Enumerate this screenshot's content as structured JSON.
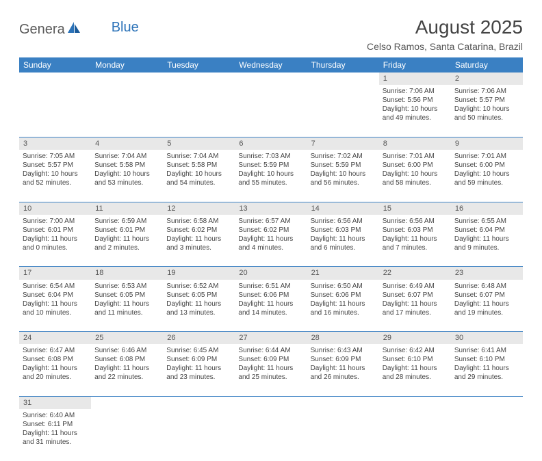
{
  "logo": {
    "text_general": "Genera",
    "text_blue": "Blue"
  },
  "title": "August 2025",
  "location": "Celso Ramos, Santa Catarina, Brazil",
  "colors": {
    "header_bg": "#3a80c3",
    "header_text": "#ffffff",
    "daynum_bg": "#e8e8e8",
    "row_divider": "#3a80c3",
    "logo_blue": "#2b72b8",
    "body_text": "#444444",
    "page_bg": "#ffffff"
  },
  "weekdays": [
    "Sunday",
    "Monday",
    "Tuesday",
    "Wednesday",
    "Thursday",
    "Friday",
    "Saturday"
  ],
  "weeks": [
    [
      null,
      null,
      null,
      null,
      null,
      {
        "n": "1",
        "sunrise": "Sunrise: 7:06 AM",
        "sunset": "Sunset: 5:56 PM",
        "day1": "Daylight: 10 hours",
        "day2": "and 49 minutes."
      },
      {
        "n": "2",
        "sunrise": "Sunrise: 7:06 AM",
        "sunset": "Sunset: 5:57 PM",
        "day1": "Daylight: 10 hours",
        "day2": "and 50 minutes."
      }
    ],
    [
      {
        "n": "3",
        "sunrise": "Sunrise: 7:05 AM",
        "sunset": "Sunset: 5:57 PM",
        "day1": "Daylight: 10 hours",
        "day2": "and 52 minutes."
      },
      {
        "n": "4",
        "sunrise": "Sunrise: 7:04 AM",
        "sunset": "Sunset: 5:58 PM",
        "day1": "Daylight: 10 hours",
        "day2": "and 53 minutes."
      },
      {
        "n": "5",
        "sunrise": "Sunrise: 7:04 AM",
        "sunset": "Sunset: 5:58 PM",
        "day1": "Daylight: 10 hours",
        "day2": "and 54 minutes."
      },
      {
        "n": "6",
        "sunrise": "Sunrise: 7:03 AM",
        "sunset": "Sunset: 5:59 PM",
        "day1": "Daylight: 10 hours",
        "day2": "and 55 minutes."
      },
      {
        "n": "7",
        "sunrise": "Sunrise: 7:02 AM",
        "sunset": "Sunset: 5:59 PM",
        "day1": "Daylight: 10 hours",
        "day2": "and 56 minutes."
      },
      {
        "n": "8",
        "sunrise": "Sunrise: 7:01 AM",
        "sunset": "Sunset: 6:00 PM",
        "day1": "Daylight: 10 hours",
        "day2": "and 58 minutes."
      },
      {
        "n": "9",
        "sunrise": "Sunrise: 7:01 AM",
        "sunset": "Sunset: 6:00 PM",
        "day1": "Daylight: 10 hours",
        "day2": "and 59 minutes."
      }
    ],
    [
      {
        "n": "10",
        "sunrise": "Sunrise: 7:00 AM",
        "sunset": "Sunset: 6:01 PM",
        "day1": "Daylight: 11 hours",
        "day2": "and 0 minutes."
      },
      {
        "n": "11",
        "sunrise": "Sunrise: 6:59 AM",
        "sunset": "Sunset: 6:01 PM",
        "day1": "Daylight: 11 hours",
        "day2": "and 2 minutes."
      },
      {
        "n": "12",
        "sunrise": "Sunrise: 6:58 AM",
        "sunset": "Sunset: 6:02 PM",
        "day1": "Daylight: 11 hours",
        "day2": "and 3 minutes."
      },
      {
        "n": "13",
        "sunrise": "Sunrise: 6:57 AM",
        "sunset": "Sunset: 6:02 PM",
        "day1": "Daylight: 11 hours",
        "day2": "and 4 minutes."
      },
      {
        "n": "14",
        "sunrise": "Sunrise: 6:56 AM",
        "sunset": "Sunset: 6:03 PM",
        "day1": "Daylight: 11 hours",
        "day2": "and 6 minutes."
      },
      {
        "n": "15",
        "sunrise": "Sunrise: 6:56 AM",
        "sunset": "Sunset: 6:03 PM",
        "day1": "Daylight: 11 hours",
        "day2": "and 7 minutes."
      },
      {
        "n": "16",
        "sunrise": "Sunrise: 6:55 AM",
        "sunset": "Sunset: 6:04 PM",
        "day1": "Daylight: 11 hours",
        "day2": "and 9 minutes."
      }
    ],
    [
      {
        "n": "17",
        "sunrise": "Sunrise: 6:54 AM",
        "sunset": "Sunset: 6:04 PM",
        "day1": "Daylight: 11 hours",
        "day2": "and 10 minutes."
      },
      {
        "n": "18",
        "sunrise": "Sunrise: 6:53 AM",
        "sunset": "Sunset: 6:05 PM",
        "day1": "Daylight: 11 hours",
        "day2": "and 11 minutes."
      },
      {
        "n": "19",
        "sunrise": "Sunrise: 6:52 AM",
        "sunset": "Sunset: 6:05 PM",
        "day1": "Daylight: 11 hours",
        "day2": "and 13 minutes."
      },
      {
        "n": "20",
        "sunrise": "Sunrise: 6:51 AM",
        "sunset": "Sunset: 6:06 PM",
        "day1": "Daylight: 11 hours",
        "day2": "and 14 minutes."
      },
      {
        "n": "21",
        "sunrise": "Sunrise: 6:50 AM",
        "sunset": "Sunset: 6:06 PM",
        "day1": "Daylight: 11 hours",
        "day2": "and 16 minutes."
      },
      {
        "n": "22",
        "sunrise": "Sunrise: 6:49 AM",
        "sunset": "Sunset: 6:07 PM",
        "day1": "Daylight: 11 hours",
        "day2": "and 17 minutes."
      },
      {
        "n": "23",
        "sunrise": "Sunrise: 6:48 AM",
        "sunset": "Sunset: 6:07 PM",
        "day1": "Daylight: 11 hours",
        "day2": "and 19 minutes."
      }
    ],
    [
      {
        "n": "24",
        "sunrise": "Sunrise: 6:47 AM",
        "sunset": "Sunset: 6:08 PM",
        "day1": "Daylight: 11 hours",
        "day2": "and 20 minutes."
      },
      {
        "n": "25",
        "sunrise": "Sunrise: 6:46 AM",
        "sunset": "Sunset: 6:08 PM",
        "day1": "Daylight: 11 hours",
        "day2": "and 22 minutes."
      },
      {
        "n": "26",
        "sunrise": "Sunrise: 6:45 AM",
        "sunset": "Sunset: 6:09 PM",
        "day1": "Daylight: 11 hours",
        "day2": "and 23 minutes."
      },
      {
        "n": "27",
        "sunrise": "Sunrise: 6:44 AM",
        "sunset": "Sunset: 6:09 PM",
        "day1": "Daylight: 11 hours",
        "day2": "and 25 minutes."
      },
      {
        "n": "28",
        "sunrise": "Sunrise: 6:43 AM",
        "sunset": "Sunset: 6:09 PM",
        "day1": "Daylight: 11 hours",
        "day2": "and 26 minutes."
      },
      {
        "n": "29",
        "sunrise": "Sunrise: 6:42 AM",
        "sunset": "Sunset: 6:10 PM",
        "day1": "Daylight: 11 hours",
        "day2": "and 28 minutes."
      },
      {
        "n": "30",
        "sunrise": "Sunrise: 6:41 AM",
        "sunset": "Sunset: 6:10 PM",
        "day1": "Daylight: 11 hours",
        "day2": "and 29 minutes."
      }
    ],
    [
      {
        "n": "31",
        "sunrise": "Sunrise: 6:40 AM",
        "sunset": "Sunset: 6:11 PM",
        "day1": "Daylight: 11 hours",
        "day2": "and 31 minutes."
      },
      null,
      null,
      null,
      null,
      null,
      null
    ]
  ]
}
